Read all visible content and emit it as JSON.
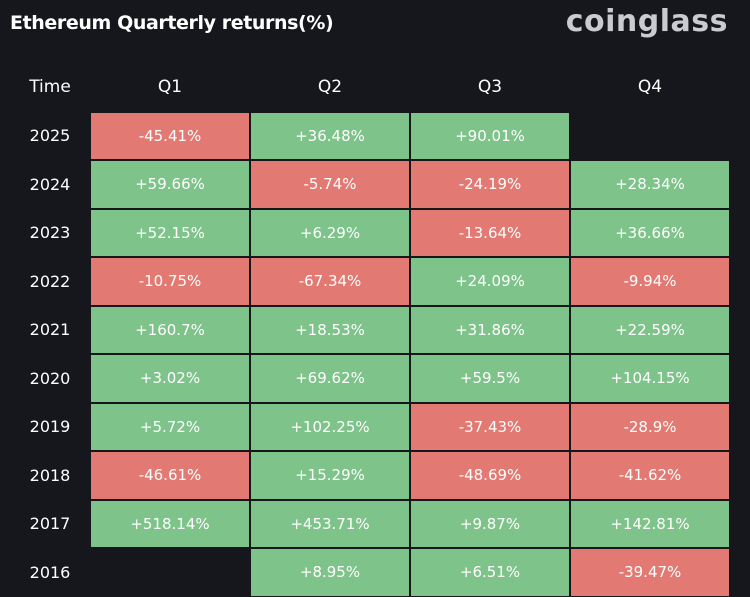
{
  "title": "Ethereum Quarterly returns(%)",
  "brand": "coinglass",
  "colors": {
    "background": "#15171c",
    "positive": "#7dc38a",
    "negative": "#e27a73"
  },
  "header": {
    "time": "Time",
    "quarters": [
      "Q1",
      "Q2",
      "Q3",
      "Q4"
    ]
  },
  "rows": [
    {
      "year": "2025",
      "cells": [
        "-45.41%",
        "+36.48%",
        "+90.01%",
        ""
      ]
    },
    {
      "year": "2024",
      "cells": [
        "+59.66%",
        "-5.74%",
        "-24.19%",
        "+28.34%"
      ]
    },
    {
      "year": "2023",
      "cells": [
        "+52.15%",
        "+6.29%",
        "-13.64%",
        "+36.66%"
      ]
    },
    {
      "year": "2022",
      "cells": [
        "-10.75%",
        "-67.34%",
        "+24.09%",
        "-9.94%"
      ]
    },
    {
      "year": "2021",
      "cells": [
        "+160.7%",
        "+18.53%",
        "+31.86%",
        "+22.59%"
      ]
    },
    {
      "year": "2020",
      "cells": [
        "+3.02%",
        "+69.62%",
        "+59.5%",
        "+104.15%"
      ]
    },
    {
      "year": "2019",
      "cells": [
        "+5.72%",
        "+102.25%",
        "-37.43%",
        "-28.9%"
      ]
    },
    {
      "year": "2018",
      "cells": [
        "-46.61%",
        "+15.29%",
        "-48.69%",
        "-41.62%"
      ]
    },
    {
      "year": "2017",
      "cells": [
        "+518.14%",
        "+453.71%",
        "+9.87%",
        "+142.81%"
      ]
    },
    {
      "year": "2016",
      "cells": [
        "",
        "+8.95%",
        "+6.51%",
        "-39.47%"
      ]
    }
  ],
  "chart_data": {
    "type": "heatmap",
    "title": "Ethereum Quarterly returns(%)",
    "row_label": "Time",
    "columns": [
      "Q1",
      "Q2",
      "Q3",
      "Q4"
    ],
    "rows": [
      "2025",
      "2024",
      "2023",
      "2022",
      "2021",
      "2020",
      "2019",
      "2018",
      "2017",
      "2016"
    ],
    "values": [
      [
        -45.41,
        36.48,
        90.01,
        null
      ],
      [
        59.66,
        -5.74,
        -24.19,
        28.34
      ],
      [
        52.15,
        6.29,
        -13.64,
        36.66
      ],
      [
        -10.75,
        -67.34,
        24.09,
        -9.94
      ],
      [
        160.7,
        18.53,
        31.86,
        22.59
      ],
      [
        3.02,
        69.62,
        59.5,
        104.15
      ],
      [
        5.72,
        102.25,
        -37.43,
        -28.9
      ],
      [
        -46.61,
        15.29,
        -48.69,
        -41.62
      ],
      [
        518.14,
        453.71,
        9.87,
        142.81
      ],
      [
        null,
        8.95,
        6.51,
        -39.47
      ]
    ]
  }
}
